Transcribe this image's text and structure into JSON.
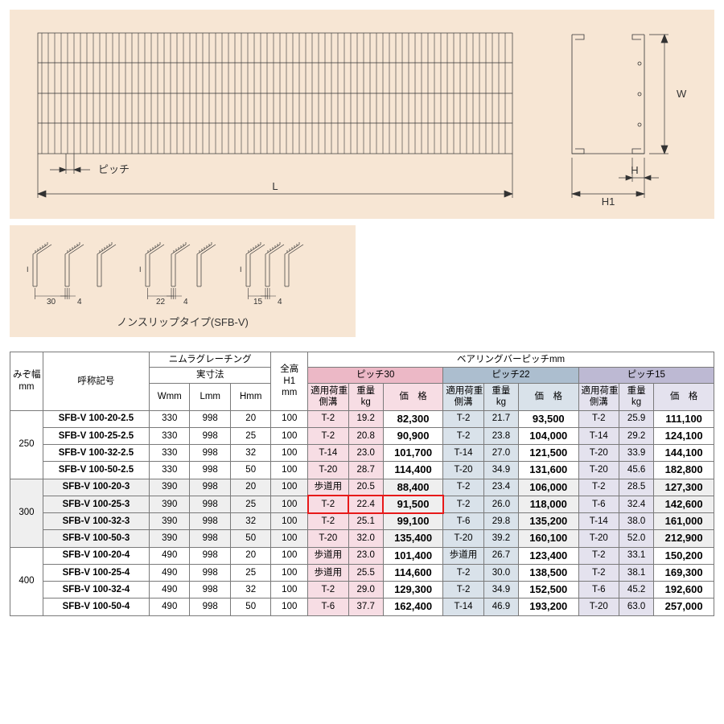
{
  "labels": {
    "pitch": "ピッチ",
    "L": "L",
    "W": "W",
    "H": "H",
    "H1": "H1",
    "subtitle": "ノンスリップタイプ(SFB-V)",
    "mizo": "みぞ幅\nmm",
    "code": "呼称記号",
    "nimura": "ニムラグレーチング",
    "jissun": "実寸法",
    "Wmm": "Wmm",
    "Lmm": "Lmm",
    "Hmm": "Hmm",
    "zenkou": "全高\nH1\nmm",
    "bearing": "ベアリングバーピッチmm",
    "p30": "ピッチ30",
    "p22": "ピッチ22",
    "p15": "ピッチ15",
    "load": "適用荷重\n側溝",
    "weight": "重量\nkg",
    "price": "価　格"
  },
  "bars": [
    {
      "gap": "30",
      "t": "4"
    },
    {
      "gap": "22",
      "t": "4"
    },
    {
      "gap": "15",
      "t": "4"
    }
  ],
  "groups": [
    {
      "mizo": "250",
      "cls": "",
      "rows": [
        {
          "code": "SFB-V 100-20-2.5",
          "W": "330",
          "L": "998",
          "H": "20",
          "H1": "100",
          "p30": {
            "load": "T-2",
            "wt": "19.2",
            "price": "82,300"
          },
          "p22": {
            "load": "T-2",
            "wt": "21.7",
            "price": "93,500"
          },
          "p15": {
            "load": "T-2",
            "wt": "25.9",
            "price": "111,100"
          }
        },
        {
          "code": "SFB-V 100-25-2.5",
          "W": "330",
          "L": "998",
          "H": "25",
          "H1": "100",
          "p30": {
            "load": "T-2",
            "wt": "20.8",
            "price": "90,900"
          },
          "p22": {
            "load": "T-2",
            "wt": "23.8",
            "price": "104,000"
          },
          "p15": {
            "load": "T-14",
            "wt": "29.2",
            "price": "124,100"
          }
        },
        {
          "code": "SFB-V 100-32-2.5",
          "W": "330",
          "L": "998",
          "H": "32",
          "H1": "100",
          "p30": {
            "load": "T-14",
            "wt": "23.0",
            "price": "101,700"
          },
          "p22": {
            "load": "T-14",
            "wt": "27.0",
            "price": "121,500"
          },
          "p15": {
            "load": "T-20",
            "wt": "33.9",
            "price": "144,100"
          }
        },
        {
          "code": "SFB-V 100-50-2.5",
          "W": "330",
          "L": "998",
          "H": "50",
          "H1": "100",
          "p30": {
            "load": "T-20",
            "wt": "28.7",
            "price": "114,400"
          },
          "p22": {
            "load": "T-20",
            "wt": "34.9",
            "price": "131,600"
          },
          "p15": {
            "load": "T-20",
            "wt": "45.6",
            "price": "182,800"
          }
        }
      ]
    },
    {
      "mizo": "300",
      "cls": "grp-300",
      "rows": [
        {
          "code": "SFB-V 100-20-3",
          "W": "390",
          "L": "998",
          "H": "20",
          "H1": "100",
          "p30": {
            "load": "歩道用",
            "wt": "20.5",
            "price": "88,400"
          },
          "p22": {
            "load": "T-2",
            "wt": "23.4",
            "price": "106,000"
          },
          "p15": {
            "load": "T-2",
            "wt": "28.5",
            "price": "127,300"
          }
        },
        {
          "code": "SFB-V 100-25-3",
          "W": "390",
          "L": "998",
          "H": "25",
          "H1": "100",
          "hl": true,
          "p30": {
            "load": "T-2",
            "wt": "22.4",
            "price": "91,500"
          },
          "p22": {
            "load": "T-2",
            "wt": "26.0",
            "price": "118,000"
          },
          "p15": {
            "load": "T-6",
            "wt": "32.4",
            "price": "142,600"
          }
        },
        {
          "code": "SFB-V 100-32-3",
          "W": "390",
          "L": "998",
          "H": "32",
          "H1": "100",
          "p30": {
            "load": "T-2",
            "wt": "25.1",
            "price": "99,100"
          },
          "p22": {
            "load": "T-6",
            "wt": "29.8",
            "price": "135,200"
          },
          "p15": {
            "load": "T-14",
            "wt": "38.0",
            "price": "161,000"
          }
        },
        {
          "code": "SFB-V 100-50-3",
          "W": "390",
          "L": "998",
          "H": "50",
          "H1": "100",
          "p30": {
            "load": "T-20",
            "wt": "32.0",
            "price": "135,400"
          },
          "p22": {
            "load": "T-20",
            "wt": "39.2",
            "price": "160,100"
          },
          "p15": {
            "load": "T-20",
            "wt": "52.0",
            "price": "212,900"
          }
        }
      ]
    },
    {
      "mizo": "400",
      "cls": "",
      "rows": [
        {
          "code": "SFB-V 100-20-4",
          "W": "490",
          "L": "998",
          "H": "20",
          "H1": "100",
          "p30": {
            "load": "歩道用",
            "wt": "23.0",
            "price": "101,400"
          },
          "p22": {
            "load": "歩道用",
            "wt": "26.7",
            "price": "123,400"
          },
          "p15": {
            "load": "T-2",
            "wt": "33.1",
            "price": "150,200"
          }
        },
        {
          "code": "SFB-V 100-25-4",
          "W": "490",
          "L": "998",
          "H": "25",
          "H1": "100",
          "p30": {
            "load": "歩道用",
            "wt": "25.5",
            "price": "114,600"
          },
          "p22": {
            "load": "T-2",
            "wt": "30.0",
            "price": "138,500"
          },
          "p15": {
            "load": "T-2",
            "wt": "38.1",
            "price": "169,300"
          }
        },
        {
          "code": "SFB-V 100-32-4",
          "W": "490",
          "L": "998",
          "H": "32",
          "H1": "100",
          "p30": {
            "load": "T-2",
            "wt": "29.0",
            "price": "129,300"
          },
          "p22": {
            "load": "T-2",
            "wt": "34.9",
            "price": "152,500"
          },
          "p15": {
            "load": "T-6",
            "wt": "45.2",
            "price": "192,600"
          }
        },
        {
          "code": "SFB-V 100-50-4",
          "W": "490",
          "L": "998",
          "H": "50",
          "H1": "100",
          "p30": {
            "load": "T-6",
            "wt": "37.7",
            "price": "162,400"
          },
          "p22": {
            "load": "T-14",
            "wt": "46.9",
            "price": "193,200"
          },
          "p15": {
            "load": "T-20",
            "wt": "63.0",
            "price": "257,000"
          }
        }
      ]
    }
  ]
}
